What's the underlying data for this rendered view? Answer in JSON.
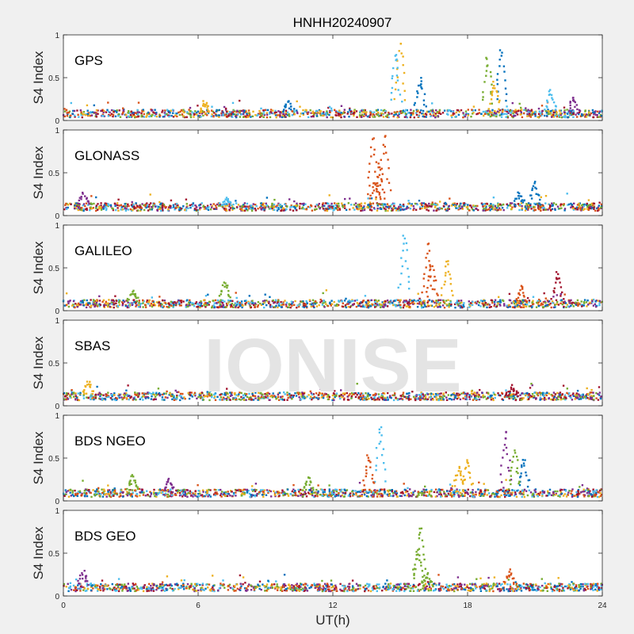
{
  "chart_data": {
    "type": "scatter",
    "title": "HNHH20240907",
    "xlabel": "UT(h)",
    "ylabel": "S4 Index",
    "xlim": [
      0,
      24
    ],
    "ylim": [
      0,
      1
    ],
    "x_ticks": [
      "0",
      "6",
      "12",
      "18",
      "24"
    ],
    "y_ticks": [
      "0",
      "0.5",
      "1"
    ],
    "watermark": "IONISE",
    "colors": [
      "#0072BD",
      "#D95319",
      "#EDB120",
      "#7E2F8E",
      "#77AC30",
      "#4DBEEE",
      "#A2142F"
    ],
    "panels": [
      {
        "name": "GPS",
        "baseline": 0.08,
        "events": [
          {
            "x": 15.0,
            "y": 0.95,
            "color": "#EDB120"
          },
          {
            "x": 14.8,
            "y": 0.82,
            "color": "#4DBEEE"
          },
          {
            "x": 15.9,
            "y": 0.5,
            "color": "#0072BD"
          },
          {
            "x": 18.9,
            "y": 0.75,
            "color": "#77AC30"
          },
          {
            "x": 19.5,
            "y": 0.85,
            "color": "#0072BD"
          },
          {
            "x": 19.2,
            "y": 0.45,
            "color": "#EDB120"
          },
          {
            "x": 10.0,
            "y": 0.22,
            "color": "#0072BD"
          },
          {
            "x": 6.3,
            "y": 0.2,
            "color": "#EDB120"
          },
          {
            "x": 21.7,
            "y": 0.35,
            "color": "#4DBEEE"
          },
          {
            "x": 22.7,
            "y": 0.28,
            "color": "#7E2F8E"
          }
        ]
      },
      {
        "name": "GLONASS",
        "baseline": 0.1,
        "events": [
          {
            "x": 13.8,
            "y": 0.92,
            "color": "#D95319"
          },
          {
            "x": 14.3,
            "y": 0.95,
            "color": "#D95319"
          },
          {
            "x": 14.1,
            "y": 0.62,
            "color": "#D95319"
          },
          {
            "x": 13.9,
            "y": 0.4,
            "color": "#D95319"
          },
          {
            "x": 20.3,
            "y": 0.25,
            "color": "#0072BD"
          },
          {
            "x": 21.0,
            "y": 0.38,
            "color": "#0072BD"
          },
          {
            "x": 7.3,
            "y": 0.2,
            "color": "#4DBEEE"
          },
          {
            "x": 0.9,
            "y": 0.25,
            "color": "#7E2F8E"
          }
        ]
      },
      {
        "name": "GALILEO",
        "baseline": 0.08,
        "events": [
          {
            "x": 15.2,
            "y": 0.9,
            "color": "#4DBEEE"
          },
          {
            "x": 16.2,
            "y": 0.8,
            "color": "#D95319"
          },
          {
            "x": 16.4,
            "y": 0.55,
            "color": "#D95319"
          },
          {
            "x": 17.1,
            "y": 0.6,
            "color": "#EDB120"
          },
          {
            "x": 20.4,
            "y": 0.28,
            "color": "#D95319"
          },
          {
            "x": 22.0,
            "y": 0.45,
            "color": "#A2142F"
          },
          {
            "x": 7.2,
            "y": 0.35,
            "color": "#77AC30"
          },
          {
            "x": 3.1,
            "y": 0.22,
            "color": "#77AC30"
          }
        ]
      },
      {
        "name": "SBAS",
        "baseline": 0.11,
        "events": [
          {
            "x": 1.1,
            "y": 0.27,
            "color": "#EDB120"
          },
          {
            "x": 20.0,
            "y": 0.22,
            "color": "#A2142F"
          }
        ]
      },
      {
        "name": "BDS NGEO",
        "baseline": 0.09,
        "events": [
          {
            "x": 14.1,
            "y": 0.9,
            "color": "#4DBEEE"
          },
          {
            "x": 13.6,
            "y": 0.55,
            "color": "#D95319"
          },
          {
            "x": 18.0,
            "y": 0.5,
            "color": "#EDB120"
          },
          {
            "x": 17.6,
            "y": 0.4,
            "color": "#EDB120"
          },
          {
            "x": 19.7,
            "y": 0.85,
            "color": "#7E2F8E"
          },
          {
            "x": 20.5,
            "y": 0.5,
            "color": "#0072BD"
          },
          {
            "x": 20.1,
            "y": 0.6,
            "color": "#77AC30"
          },
          {
            "x": 3.1,
            "y": 0.3,
            "color": "#77AC30"
          },
          {
            "x": 4.7,
            "y": 0.25,
            "color": "#7E2F8E"
          },
          {
            "x": 10.9,
            "y": 0.28,
            "color": "#77AC30"
          }
        ]
      },
      {
        "name": "BDS GEO",
        "baseline": 0.1,
        "events": [
          {
            "x": 15.9,
            "y": 0.85,
            "color": "#77AC30"
          },
          {
            "x": 15.8,
            "y": 0.55,
            "color": "#77AC30"
          },
          {
            "x": 16.2,
            "y": 0.25,
            "color": "#77AC30"
          },
          {
            "x": 19.9,
            "y": 0.3,
            "color": "#D95319"
          },
          {
            "x": 0.9,
            "y": 0.28,
            "color": "#7E2F8E"
          }
        ]
      }
    ]
  }
}
